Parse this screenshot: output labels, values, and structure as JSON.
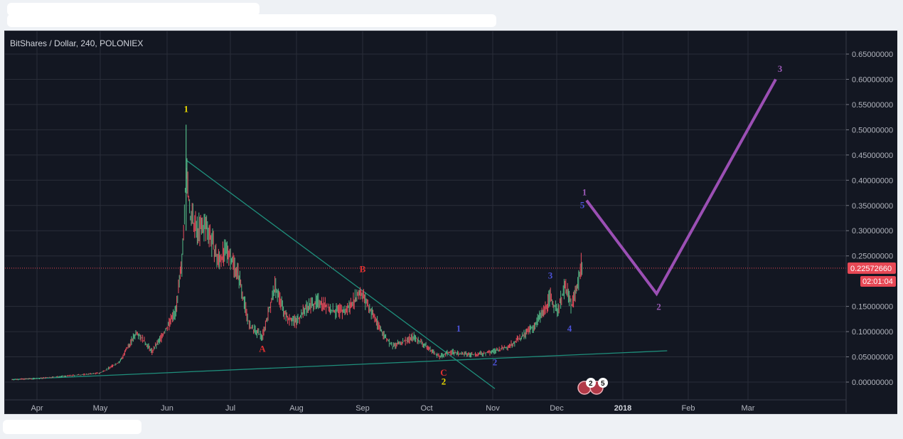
{
  "chart_data": {
    "type": "line",
    "title": "BitShares / Dollar, 240, POLONIEX",
    "xlabel": "",
    "ylabel": "",
    "ylim": [
      -0.017,
      0.67
    ],
    "grid": true,
    "x_ticks": [
      "Apr",
      "May",
      "Jun",
      "Jul",
      "Aug",
      "Sep",
      "Oct",
      "Nov",
      "Dec",
      "2018",
      "Feb",
      "Mar"
    ],
    "y_ticks": [
      "0.65000000",
      "0.60000000",
      "0.55000000",
      "0.50000000",
      "0.45000000",
      "0.40000000",
      "0.35000000",
      "0.30000000",
      "0.25000000",
      "0.15000000",
      "0.10000000",
      "0.05000000",
      "0.00000000"
    ],
    "last_price": "0.22572660",
    "countdown": "02:01:04",
    "price_series": {
      "name": "BTS/USD",
      "x": [
        "2017-03-20",
        "2017-04-01",
        "2017-04-15",
        "2017-05-01",
        "2017-05-10",
        "2017-05-18",
        "2017-05-25",
        "2017-05-31",
        "2017-06-05",
        "2017-06-08",
        "2017-06-10",
        "2017-06-12",
        "2017-06-15",
        "2017-06-20",
        "2017-06-25",
        "2017-06-30",
        "2017-07-05",
        "2017-07-10",
        "2017-07-16",
        "2017-07-22",
        "2017-07-27",
        "2017-08-01",
        "2017-08-06",
        "2017-08-12",
        "2017-08-18",
        "2017-08-24",
        "2017-08-31",
        "2017-09-05",
        "2017-09-10",
        "2017-09-15",
        "2017-09-20",
        "2017-09-25",
        "2017-10-01",
        "2017-10-07",
        "2017-10-12",
        "2017-10-18",
        "2017-10-25",
        "2017-11-01",
        "2017-11-08",
        "2017-11-15",
        "2017-11-20",
        "2017-11-25",
        "2017-11-28",
        "2017-12-01",
        "2017-12-05",
        "2017-12-08",
        "2017-12-11",
        "2017-12-13"
      ],
      "y": [
        0.005,
        0.007,
        0.012,
        0.018,
        0.04,
        0.1,
        0.06,
        0.1,
        0.14,
        0.23,
        0.42,
        0.33,
        0.3,
        0.31,
        0.24,
        0.26,
        0.21,
        0.11,
        0.09,
        0.19,
        0.13,
        0.12,
        0.15,
        0.16,
        0.14,
        0.14,
        0.18,
        0.14,
        0.1,
        0.07,
        0.08,
        0.09,
        0.07,
        0.05,
        0.06,
        0.055,
        0.055,
        0.06,
        0.07,
        0.09,
        0.11,
        0.14,
        0.17,
        0.14,
        0.19,
        0.15,
        0.2,
        0.24
      ]
    },
    "projection": {
      "name": "",
      "x": [
        "2017-12-15",
        "2018-01-17",
        "2018-03-14"
      ],
      "y": [
        0.36,
        0.175,
        0.6
      ]
    },
    "trendlines": [
      {
        "x": [
          "2017-06-10",
          "2017-11-02"
        ],
        "y": [
          0.44,
          -0.013
        ]
      },
      {
        "x": [
          "2017-03-20",
          "2018-01-22"
        ],
        "y": [
          0.005,
          0.062
        ]
      }
    ],
    "wave_labels": [
      {
        "text": "1",
        "x": "2017-06-10",
        "y": 0.535,
        "color": "#e8d800"
      },
      {
        "text": "A",
        "x": "2017-07-16",
        "y": 0.06,
        "color": "#e03030"
      },
      {
        "text": "B",
        "x": "2017-09-01",
        "y": 0.218,
        "color": "#e03030"
      },
      {
        "text": "C",
        "x": "2017-10-09",
        "y": 0.013,
        "color": "#e03030"
      },
      {
        "text": "2",
        "x": "2017-10-09",
        "y": -0.005,
        "color": "#e8d800"
      },
      {
        "text": "1",
        "x": "2017-10-16",
        "y": 0.1,
        "color": "#4c52d8"
      },
      {
        "text": "2",
        "x": "2017-11-02",
        "y": 0.033,
        "color": "#4c52d8"
      },
      {
        "text": "3",
        "x": "2017-11-28",
        "y": 0.205,
        "color": "#4c52d8"
      },
      {
        "text": "4",
        "x": "2017-12-07",
        "y": 0.1,
        "color": "#4c52d8"
      },
      {
        "text": "1",
        "x": "2017-12-14",
        "y": 0.37,
        "color": "#9b59b6"
      },
      {
        "text": "5",
        "x": "2017-12-13",
        "y": 0.345,
        "color": "#4c52d8"
      },
      {
        "text": "2",
        "x": "2018-01-18",
        "y": 0.143,
        "color": "#9b59b6"
      },
      {
        "text": "3",
        "x": "2018-03-16",
        "y": 0.615,
        "color": "#9b59b6"
      }
    ],
    "events": [
      "2",
      "5"
    ]
  }
}
